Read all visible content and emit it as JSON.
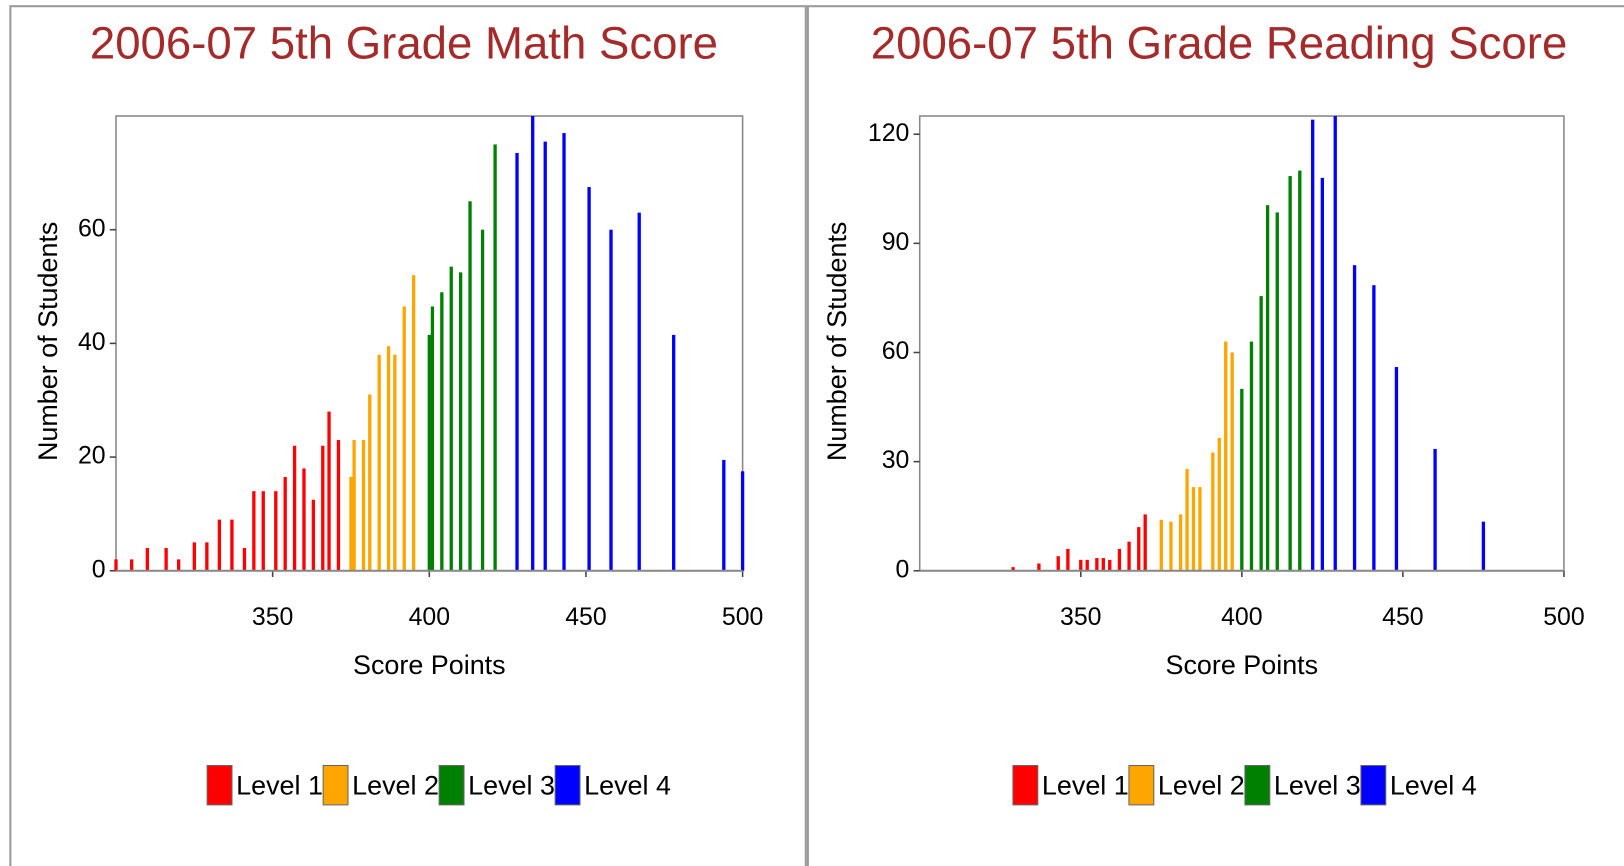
{
  "chart_data": [
    {
      "type": "bar",
      "title": "2006-07 5th Grade Math Score",
      "xlabel": "Score Points",
      "ylabel": "Number of Students",
      "xlim": [
        300,
        500
      ],
      "xticks": [
        350,
        400,
        450,
        500
      ],
      "ylim": [
        0,
        80
      ],
      "yticks": [
        0,
        20,
        40,
        60
      ],
      "series": [
        {
          "name": "Level 1",
          "color": "#ff0000",
          "x": [
            300,
            305,
            310,
            316,
            320,
            325,
            329,
            333,
            337,
            341,
            344,
            347,
            351,
            354,
            357,
            360,
            363,
            366,
            368,
            371
          ],
          "values": [
            2,
            2,
            4,
            4,
            2,
            5,
            5,
            9,
            9,
            4,
            14,
            14,
            14,
            16.5,
            22,
            18,
            12.5,
            22,
            28,
            23
          ]
        },
        {
          "name": "Level 2",
          "color": "#ffa500",
          "x": [
            375,
            376,
            379,
            381,
            384,
            387,
            389,
            392,
            395
          ],
          "values": [
            16.5,
            23,
            23,
            31,
            38,
            39.5,
            38,
            46.5,
            52
          ]
        },
        {
          "name": "Level 3",
          "color": "#008000",
          "x": [
            400,
            401,
            404,
            407,
            410,
            413,
            417,
            421
          ],
          "values": [
            41.5,
            46.5,
            49,
            53.5,
            52.5,
            65,
            60,
            75
          ]
        },
        {
          "name": "Level 4",
          "color": "#0000ff",
          "x": [
            428,
            433,
            437,
            443,
            451,
            458,
            467,
            478,
            494,
            500
          ],
          "values": [
            73.5,
            80,
            75.5,
            77,
            67.5,
            60,
            63,
            41.5,
            19.5,
            17.5
          ]
        }
      ]
    },
    {
      "type": "bar",
      "title": "2006-07 5th Grade Reading Score",
      "xlabel": "Score Points",
      "ylabel": "Number of Students",
      "xlim": [
        300,
        500
      ],
      "xticks": [
        350,
        400,
        450,
        500
      ],
      "ylim": [
        0,
        125
      ],
      "yticks": [
        0,
        30,
        60,
        90,
        120
      ],
      "series": [
        {
          "name": "Level 1",
          "color": "#ff0000",
          "x": [
            329,
            337,
            343,
            346,
            350,
            352,
            355,
            357,
            359,
            362,
            365,
            368,
            370
          ],
          "values": [
            1,
            2,
            4,
            6,
            3,
            3,
            3.5,
            3.5,
            3,
            6,
            8,
            12,
            15.5
          ]
        },
        {
          "name": "Level 2",
          "color": "#ffa500",
          "x": [
            375,
            378,
            381,
            383,
            385,
            387,
            391,
            393,
            395,
            397
          ],
          "values": [
            14,
            13.5,
            15.5,
            28,
            23,
            23,
            32.5,
            36.5,
            63,
            60
          ]
        },
        {
          "name": "Level 3",
          "color": "#008000",
          "x": [
            400,
            403,
            406,
            408,
            411,
            415,
            418
          ],
          "values": [
            50,
            63,
            75.5,
            100.5,
            98.5,
            108.5,
            110
          ]
        },
        {
          "name": "Level 4",
          "color": "#0000ff",
          "x": [
            422,
            425,
            429,
            435,
            441,
            448,
            460,
            475
          ],
          "values": [
            124,
            108,
            125,
            84,
            78.5,
            56,
            33.5,
            13.5
          ]
        }
      ]
    }
  ]
}
